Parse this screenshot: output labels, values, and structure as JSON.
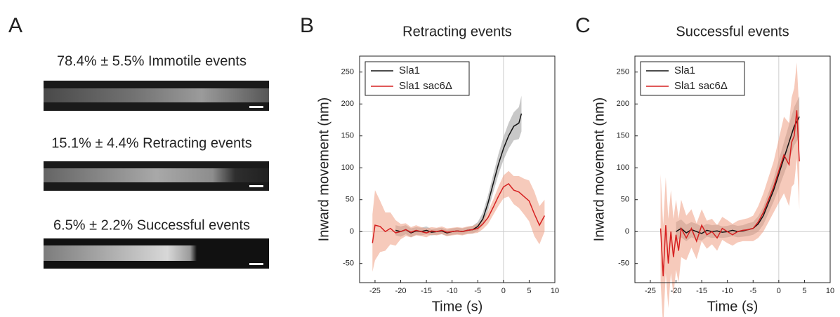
{
  "panel_a": {
    "label": "A",
    "captions": [
      "78.4% ± 5.5% Immotile events",
      "15.1% ± 4.4% Retracting events",
      "6.5% ± 2.2% Successful events"
    ]
  },
  "chart_data": [
    {
      "type": "line",
      "panel_label": "B",
      "title": "Retracting events",
      "x_label": "Time (s)",
      "y_label": "Inward movement (nm)",
      "xlim": [
        -28,
        10
      ],
      "ylim": [
        -80,
        275
      ],
      "xticks": [
        -25,
        -20,
        -15,
        -10,
        -5,
        0,
        5,
        10
      ],
      "yticks": [
        -50,
        0,
        50,
        100,
        150,
        200,
        250
      ],
      "zero_lines": true,
      "legend": "upper left",
      "series": [
        {
          "name": "Sla1",
          "color": "#111111",
          "band_color": "#9a9a9a",
          "x": [
            -21,
            -20,
            -19,
            -18,
            -17,
            -16,
            -15,
            -14,
            -13,
            -12,
            -11,
            -10,
            -9,
            -8,
            -7,
            -6,
            -5,
            -4,
            -3,
            -2,
            -1,
            0,
            1,
            2,
            3,
            3.5
          ],
          "values": [
            2,
            0,
            3,
            -2,
            1,
            0,
            2,
            -1,
            0,
            1,
            -2,
            0,
            1,
            0,
            2,
            3,
            8,
            20,
            45,
            75,
            105,
            130,
            150,
            165,
            170,
            185
          ],
          "error": [
            8,
            8,
            7,
            7,
            6,
            6,
            6,
            5,
            5,
            5,
            5,
            5,
            5,
            5,
            5,
            6,
            7,
            10,
            12,
            14,
            16,
            18,
            20,
            22,
            25,
            28
          ]
        },
        {
          "name": "Sla1 sac6Δ",
          "color": "#d62020",
          "band_color": "#ef9f84",
          "x": [
            -25.5,
            -25,
            -24,
            -23,
            -22,
            -21,
            -20,
            -19,
            -18,
            -17,
            -16,
            -15,
            -14,
            -13,
            -12,
            -11,
            -10,
            -9,
            -8,
            -7,
            -6,
            -5,
            -4,
            -3,
            -2,
            -1,
            0,
            1,
            2,
            3,
            4,
            5,
            6,
            7,
            8
          ],
          "values": [
            -18,
            10,
            8,
            0,
            5,
            -2,
            0,
            3,
            -1,
            2,
            0,
            -2,
            1,
            0,
            2,
            -1,
            0,
            1,
            0,
            2,
            3,
            5,
            12,
            22,
            38,
            55,
            70,
            75,
            65,
            62,
            55,
            48,
            28,
            10,
            25
          ],
          "error": [
            45,
            55,
            40,
            30,
            25,
            20,
            12,
            10,
            8,
            8,
            7,
            7,
            6,
            6,
            6,
            6,
            6,
            6,
            6,
            6,
            6,
            7,
            8,
            10,
            12,
            15,
            18,
            20,
            22,
            25,
            28,
            32,
            35,
            30,
            25
          ]
        }
      ]
    },
    {
      "type": "line",
      "panel_label": "C",
      "title": "Successful events",
      "x_label": "Time (s)",
      "y_label": "Inward movement (nm)",
      "xlim": [
        -28,
        10
      ],
      "ylim": [
        -80,
        275
      ],
      "xticks": [
        -25,
        -20,
        -15,
        -10,
        -5,
        0,
        5,
        10
      ],
      "yticks": [
        -50,
        0,
        50,
        100,
        150,
        200,
        250
      ],
      "zero_lines": true,
      "legend": "upper left",
      "series": [
        {
          "name": "Sla1",
          "color": "#111111",
          "band_color": "#9a9a9a",
          "x": [
            -20,
            -19,
            -18,
            -17,
            -16,
            -15,
            -14,
            -13,
            -12,
            -11,
            -10,
            -9,
            -8,
            -7,
            -6,
            -5,
            -4,
            -3,
            -2,
            -1,
            0,
            1,
            2,
            3,
            4
          ],
          "values": [
            0,
            5,
            -2,
            3,
            0,
            -3,
            2,
            0,
            1,
            -1,
            0,
            2,
            0,
            1,
            3,
            5,
            12,
            25,
            45,
            65,
            90,
            115,
            140,
            165,
            180
          ],
          "error": [
            15,
            14,
            13,
            12,
            12,
            11,
            10,
            10,
            10,
            9,
            9,
            9,
            9,
            9,
            10,
            10,
            12,
            14,
            16,
            18,
            22,
            25,
            28,
            30,
            32
          ]
        },
        {
          "name": "Sla1 sac6Δ",
          "color": "#d62020",
          "band_color": "#ef9f84",
          "x": [
            -23,
            -22.5,
            -22,
            -21.5,
            -21,
            -20.5,
            -20,
            -19.5,
            -19,
            -18,
            -17,
            -16,
            -15,
            -14,
            -13,
            -12,
            -11,
            -10,
            -9,
            -8,
            -7,
            -6,
            -5,
            -4,
            -3,
            -2,
            -1,
            0,
            1,
            2,
            2.5,
            3,
            3.5,
            4
          ],
          "values": [
            5,
            -70,
            10,
            -50,
            0,
            -40,
            -5,
            -30,
            5,
            -10,
            5,
            -15,
            10,
            -5,
            0,
            -10,
            5,
            0,
            -5,
            0,
            2,
            3,
            5,
            15,
            30,
            50,
            70,
            95,
            120,
            105,
            140,
            150,
            190,
            110
          ],
          "error": [
            85,
            80,
            75,
            70,
            65,
            60,
            55,
            50,
            45,
            35,
            30,
            28,
            25,
            22,
            20,
            20,
            18,
            18,
            17,
            17,
            17,
            18,
            20,
            25,
            30,
            35,
            40,
            50,
            60,
            65,
            70,
            75,
            75,
            75
          ]
        }
      ]
    }
  ]
}
